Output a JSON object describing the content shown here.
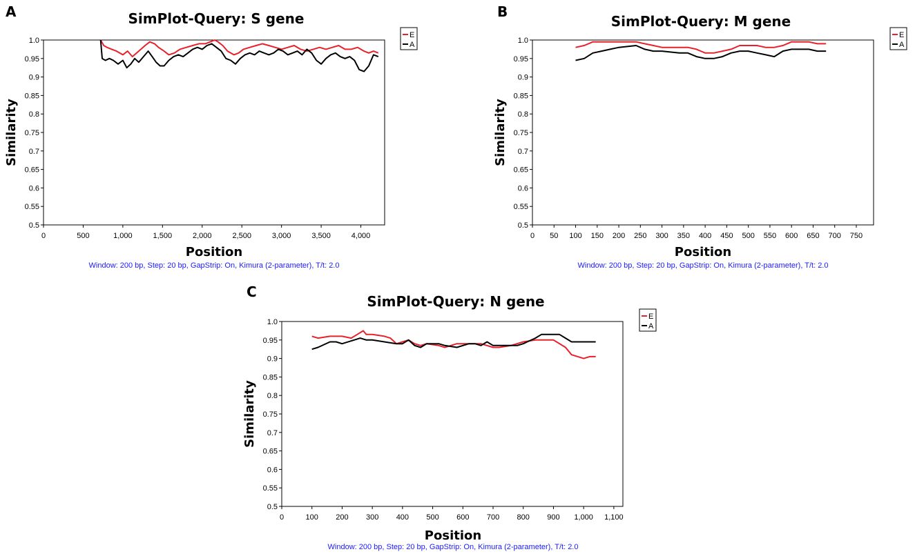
{
  "colors": {
    "E": "#e8202a",
    "A": "#000000",
    "caption": "#1a1aff"
  },
  "chart_data": [
    {
      "panel": "A",
      "type": "line",
      "title": "SimPlot-Query: S gene",
      "xlabel": "Position",
      "ylabel": "Similarity",
      "caption": "Window: 200 bp, Step: 20 bp, GapStrip: On, Kimura (2-parameter), T/t: 2.0",
      "xlim": [
        0,
        4300
      ],
      "ylim": [
        0.5,
        1.0
      ],
      "xticks": [
        0,
        500,
        1000,
        1500,
        2000,
        2500,
        3000,
        3500,
        4000
      ],
      "xtick_labels": [
        "0",
        "500",
        "1,000",
        "1,500",
        "2,000",
        "2,500",
        "3,000",
        "3,500",
        "4,000"
      ],
      "yticks": [
        0.5,
        0.55,
        0.6,
        0.65,
        0.7,
        0.75,
        0.8,
        0.85,
        0.9,
        0.95,
        1.0
      ],
      "ytick_labels": [
        "0.5",
        "0.55",
        "0.6",
        "0.65",
        "0.7",
        "0.75",
        "0.8",
        "0.85",
        "0.9",
        "0.95",
        "1.0"
      ],
      "legend": [
        "E",
        "A"
      ],
      "series": [
        {
          "name": "E",
          "x": [
            720,
            760,
            800,
            860,
            920,
            1000,
            1060,
            1120,
            1200,
            1280,
            1340,
            1400,
            1450,
            1520,
            1580,
            1650,
            1720,
            1800,
            1880,
            1960,
            2040,
            2100,
            2160,
            2200,
            2260,
            2320,
            2400,
            2460,
            2520,
            2600,
            2680,
            2760,
            2840,
            2920,
            3000,
            3080,
            3160,
            3240,
            3320,
            3400,
            3480,
            3560,
            3640,
            3720,
            3800,
            3880,
            3960,
            4040,
            4100,
            4160,
            4220
          ],
          "y": [
            1.0,
            0.985,
            0.98,
            0.975,
            0.97,
            0.96,
            0.97,
            0.955,
            0.97,
            0.985,
            0.995,
            0.99,
            0.98,
            0.97,
            0.96,
            0.965,
            0.975,
            0.98,
            0.985,
            0.99,
            0.99,
            0.995,
            1.0,
            0.995,
            0.985,
            0.97,
            0.96,
            0.965,
            0.975,
            0.98,
            0.985,
            0.99,
            0.985,
            0.98,
            0.975,
            0.98,
            0.985,
            0.975,
            0.97,
            0.975,
            0.98,
            0.975,
            0.98,
            0.985,
            0.975,
            0.975,
            0.98,
            0.97,
            0.965,
            0.97,
            0.965
          ]
        },
        {
          "name": "A",
          "x": [
            720,
            740,
            780,
            830,
            880,
            940,
            1000,
            1050,
            1100,
            1150,
            1200,
            1260,
            1320,
            1370,
            1420,
            1470,
            1520,
            1580,
            1640,
            1700,
            1760,
            1820,
            1880,
            1940,
            2000,
            2060,
            2120,
            2180,
            2240,
            2300,
            2360,
            2420,
            2480,
            2540,
            2600,
            2660,
            2720,
            2780,
            2840,
            2900,
            2960,
            3020,
            3080,
            3140,
            3200,
            3260,
            3320,
            3380,
            3440,
            3500,
            3560,
            3620,
            3680,
            3740,
            3800,
            3860,
            3920,
            3980,
            4040,
            4100,
            4160,
            4220
          ],
          "y": [
            1.0,
            0.95,
            0.945,
            0.95,
            0.945,
            0.935,
            0.945,
            0.925,
            0.935,
            0.95,
            0.94,
            0.955,
            0.97,
            0.955,
            0.94,
            0.93,
            0.93,
            0.945,
            0.955,
            0.96,
            0.955,
            0.965,
            0.975,
            0.98,
            0.975,
            0.985,
            0.99,
            0.98,
            0.97,
            0.95,
            0.945,
            0.935,
            0.95,
            0.96,
            0.965,
            0.96,
            0.97,
            0.965,
            0.96,
            0.965,
            0.975,
            0.97,
            0.96,
            0.965,
            0.97,
            0.96,
            0.975,
            0.965,
            0.945,
            0.935,
            0.95,
            0.96,
            0.965,
            0.955,
            0.95,
            0.955,
            0.945,
            0.92,
            0.915,
            0.93,
            0.96,
            0.955
          ]
        }
      ]
    },
    {
      "panel": "B",
      "type": "line",
      "title": "SimPlot-Query: M gene",
      "xlabel": "Position",
      "ylabel": "Similarity",
      "caption": "Window: 200 bp, Step: 20 bp, GapStrip: On, Kimura (2-parameter), T/t: 2.0",
      "xlim": [
        0,
        790
      ],
      "ylim": [
        0.5,
        1.0
      ],
      "xticks": [
        0,
        50,
        100,
        150,
        200,
        250,
        300,
        350,
        400,
        450,
        500,
        550,
        600,
        650,
        700,
        750
      ],
      "xtick_labels": [
        "0",
        "50",
        "100",
        "150",
        "200",
        "250",
        "300",
        "350",
        "400",
        "450",
        "500",
        "550",
        "600",
        "650",
        "700",
        "750"
      ],
      "yticks": [
        0.5,
        0.55,
        0.6,
        0.65,
        0.7,
        0.75,
        0.8,
        0.85,
        0.9,
        0.95,
        1.0
      ],
      "ytick_labels": [
        "0.5",
        "0.55",
        "0.6",
        "0.65",
        "0.7",
        "0.75",
        "0.8",
        "0.85",
        "0.9",
        "0.95",
        "1.0"
      ],
      "legend": [
        "E",
        "A"
      ],
      "series": [
        {
          "name": "E",
          "x": [
            100,
            120,
            140,
            160,
            200,
            240,
            260,
            280,
            300,
            340,
            360,
            380,
            400,
            420,
            440,
            460,
            480,
            500,
            520,
            540,
            560,
            580,
            600,
            620,
            640,
            660,
            680
          ],
          "y": [
            0.98,
            0.985,
            0.995,
            0.995,
            0.995,
            0.995,
            0.99,
            0.985,
            0.98,
            0.98,
            0.98,
            0.975,
            0.965,
            0.965,
            0.97,
            0.975,
            0.985,
            0.985,
            0.985,
            0.98,
            0.98,
            0.985,
            0.995,
            0.995,
            0.995,
            0.99,
            0.99
          ]
        },
        {
          "name": "A",
          "x": [
            100,
            120,
            140,
            160,
            180,
            200,
            240,
            260,
            280,
            300,
            340,
            360,
            380,
            400,
            420,
            440,
            460,
            480,
            500,
            520,
            540,
            560,
            580,
            600,
            620,
            640,
            660,
            680
          ],
          "y": [
            0.945,
            0.95,
            0.965,
            0.97,
            0.975,
            0.98,
            0.985,
            0.975,
            0.97,
            0.97,
            0.965,
            0.965,
            0.955,
            0.95,
            0.95,
            0.955,
            0.965,
            0.97,
            0.97,
            0.965,
            0.96,
            0.955,
            0.97,
            0.975,
            0.975,
            0.975,
            0.97,
            0.97
          ]
        }
      ]
    },
    {
      "panel": "C",
      "type": "line",
      "title": "SimPlot-Query: N gene",
      "xlabel": "Position",
      "ylabel": "Similarity",
      "caption": "Window: 200 bp, Step: 20 bp, GapStrip: On, Kimura (2-parameter), T/t: 2.0",
      "xlim": [
        0,
        1130
      ],
      "ylim": [
        0.5,
        1.0
      ],
      "xticks": [
        0,
        100,
        200,
        300,
        400,
        500,
        600,
        700,
        800,
        900,
        1000,
        1100
      ],
      "xtick_labels": [
        "0",
        "100",
        "200",
        "300",
        "400",
        "500",
        "600",
        "700",
        "800",
        "900",
        "1,000",
        "1,100"
      ],
      "yticks": [
        0.5,
        0.55,
        0.6,
        0.65,
        0.7,
        0.75,
        0.8,
        0.85,
        0.9,
        0.95,
        1.0
      ],
      "ytick_labels": [
        "0.5",
        "0.55",
        "0.6",
        "0.65",
        "0.7",
        "0.75",
        "0.8",
        "0.85",
        "0.9",
        "0.95",
        "1.0"
      ],
      "legend": [
        "E",
        "A"
      ],
      "series": [
        {
          "name": "E",
          "x": [
            100,
            120,
            160,
            200,
            230,
            250,
            270,
            280,
            300,
            340,
            360,
            380,
            400,
            420,
            440,
            460,
            480,
            520,
            540,
            580,
            620,
            660,
            700,
            720,
            760,
            800,
            840,
            870,
            900,
            940,
            960,
            1000,
            1020,
            1040
          ],
          "y": [
            0.96,
            0.955,
            0.96,
            0.96,
            0.955,
            0.965,
            0.975,
            0.965,
            0.965,
            0.96,
            0.955,
            0.94,
            0.945,
            0.95,
            0.94,
            0.935,
            0.94,
            0.935,
            0.93,
            0.94,
            0.94,
            0.94,
            0.93,
            0.93,
            0.935,
            0.945,
            0.95,
            0.95,
            0.95,
            0.93,
            0.91,
            0.9,
            0.905,
            0.905
          ]
        },
        {
          "name": "A",
          "x": [
            100,
            120,
            160,
            180,
            200,
            240,
            260,
            280,
            300,
            340,
            380,
            400,
            420,
            440,
            460,
            480,
            500,
            520,
            540,
            580,
            620,
            640,
            660,
            680,
            700,
            740,
            780,
            800,
            840,
            860,
            880,
            920,
            940,
            960,
            1000,
            1040
          ],
          "y": [
            0.925,
            0.93,
            0.945,
            0.945,
            0.94,
            0.95,
            0.955,
            0.95,
            0.95,
            0.945,
            0.94,
            0.94,
            0.95,
            0.935,
            0.93,
            0.94,
            0.94,
            0.94,
            0.935,
            0.93,
            0.94,
            0.94,
            0.935,
            0.945,
            0.935,
            0.935,
            0.935,
            0.94,
            0.955,
            0.965,
            0.965,
            0.965,
            0.955,
            0.945,
            0.945,
            0.945
          ]
        }
      ]
    }
  ]
}
